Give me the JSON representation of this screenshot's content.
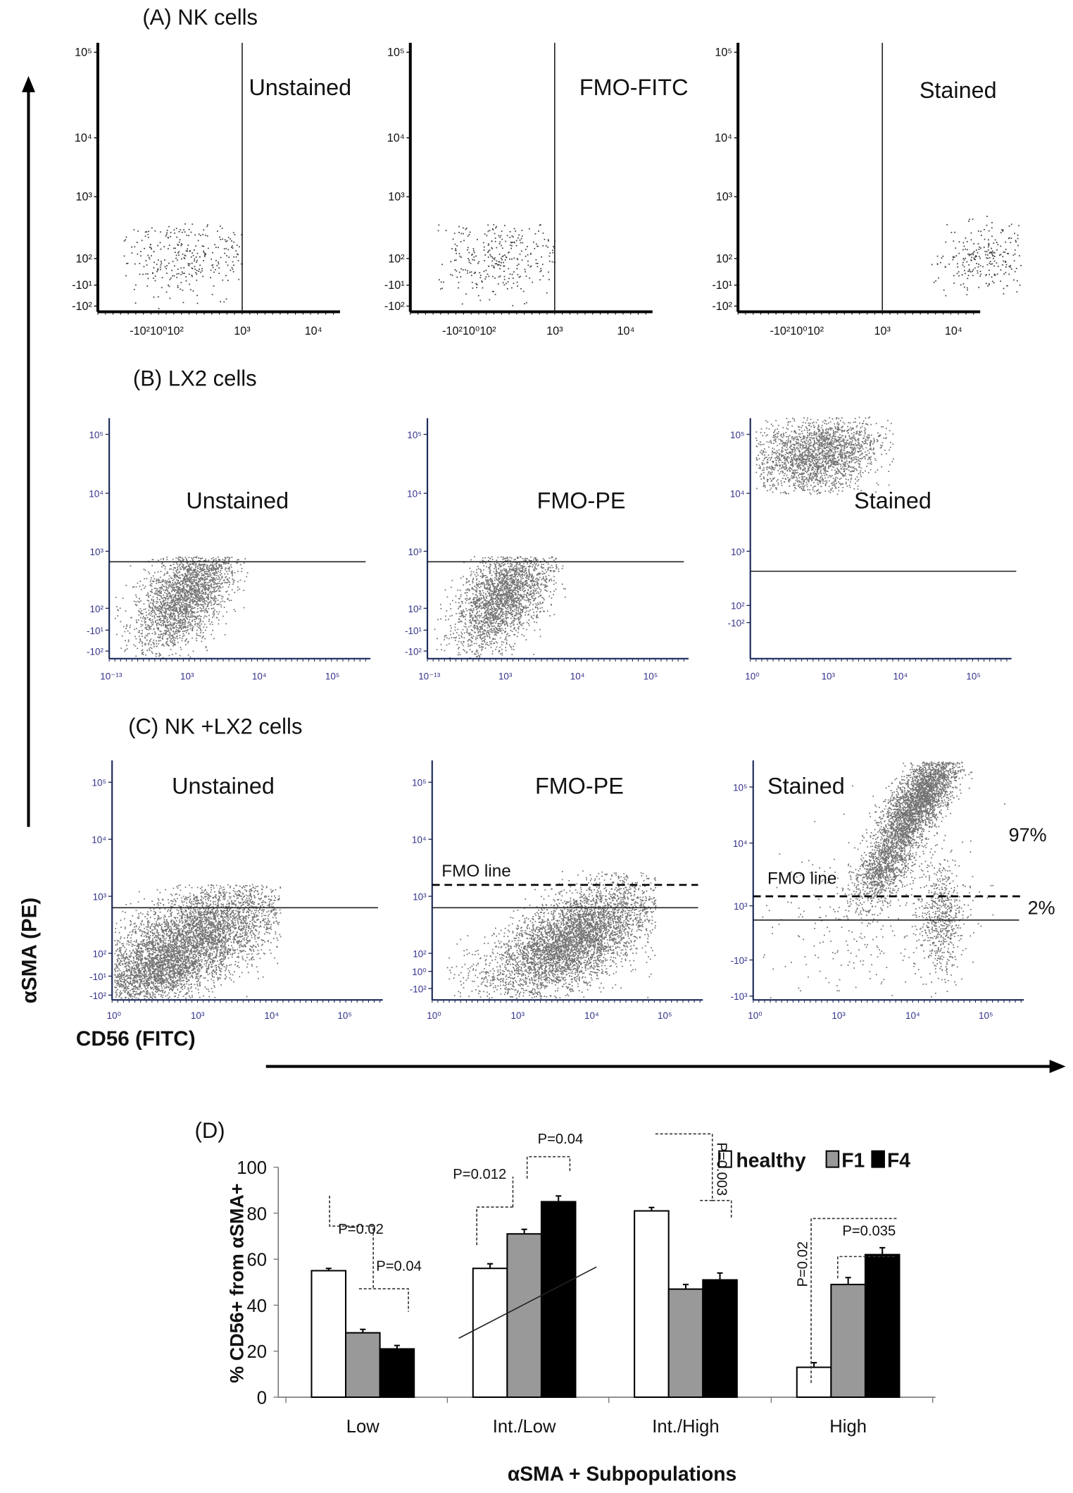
{
  "figure": {
    "y_axis_title": "αSMA (PE)",
    "x_axis_title": "CD56 (FITC)"
  },
  "panels": [
    {
      "title": "(A) NK cells",
      "plots": [
        {
          "label": "Unstained",
          "y_ticks": [
            "10⁵",
            "10⁴",
            "10³",
            "10²",
            "-10¹",
            "-10²"
          ],
          "x_ticks": [
            "-10²10⁰10²",
            "10³",
            "10⁴"
          ]
        },
        {
          "label": "FMO-FITC",
          "y_ticks": [
            "10⁵",
            "10⁴",
            "10³",
            "10²",
            "-10¹",
            "-10²"
          ],
          "x_ticks": [
            "-10²10⁰10²",
            "10³",
            "10⁴"
          ]
        },
        {
          "label": "Stained",
          "y_ticks": [
            "10⁵",
            "10⁴",
            "10³",
            "10²",
            "-10¹",
            "-10²"
          ],
          "x_ticks": [
            "-10²10⁰10²",
            "10³",
            "10⁴"
          ]
        }
      ]
    },
    {
      "title": "(B) LX2 cells",
      "plots": [
        {
          "label": "Unstained",
          "y_ticks": [
            "10⁵",
            "10⁴",
            "10³",
            "10²",
            "-10¹",
            "-10²"
          ],
          "x_ticks": [
            "10⁻¹³",
            "10³",
            "10⁴",
            "10⁵"
          ]
        },
        {
          "label": "FMO-PE",
          "y_ticks": [
            "10⁵",
            "10⁴",
            "10³",
            "10²",
            "-10¹",
            "-10²"
          ],
          "x_ticks": [
            "10⁻¹³",
            "10³",
            "10⁴",
            "10⁵"
          ]
        },
        {
          "label": "Stained",
          "y_ticks": [
            "10⁵",
            "10⁴",
            "10³",
            "10²",
            "-10²"
          ],
          "x_ticks": [
            "10⁰",
            "10³",
            "10⁴",
            "10⁵"
          ]
        }
      ]
    },
    {
      "title": "(C) NK +LX2 cells",
      "plots": [
        {
          "label": "Unstained",
          "y_ticks": [
            "10⁵",
            "10⁴",
            "10³",
            "10²",
            "-10¹",
            "-10²"
          ],
          "x_ticks": [
            "10⁰",
            "10³",
            "10⁴",
            "10⁵"
          ]
        },
        {
          "label": "FMO-PE",
          "y_ticks": [
            "10⁵",
            "10⁴",
            "10³",
            "10²",
            "10⁰",
            "-10²"
          ],
          "x_ticks": [
            "10⁰",
            "10³",
            "10⁴",
            "10⁵"
          ],
          "annotation": "FMO line"
        },
        {
          "label": "Stained",
          "y_ticks": [
            "10⁵",
            "10⁴",
            "10³",
            "-10²",
            "-10³"
          ],
          "x_ticks": [
            "10⁰",
            "10³",
            "10⁴",
            "10⁵"
          ],
          "annotation": "FMO line",
          "pct_above": "97%",
          "pct_between": "2%"
        }
      ]
    }
  ],
  "chart_data": {
    "type": "bar",
    "panel_label": "(D)",
    "title": "",
    "xlabel": "αSMA + Subpopulations",
    "ylabel": "% CD56+ from αSMA+",
    "ylim": [
      0,
      100
    ],
    "y_ticks": [
      "0",
      "20",
      "40",
      "60",
      "80",
      "100"
    ],
    "categories": [
      "Low",
      "Int./Low",
      "Int./High",
      "High"
    ],
    "legend_position": "top-right",
    "series": [
      {
        "name": "healthy",
        "color": "#ffffff",
        "values": [
          55,
          56,
          81,
          13
        ],
        "errors": [
          1,
          2,
          1.5,
          2
        ]
      },
      {
        "name": "F1",
        "color": "#999999",
        "values": [
          28,
          71,
          47,
          49
        ],
        "errors": [
          1.5,
          2,
          2,
          3
        ]
      },
      {
        "name": "F4",
        "color": "#000000",
        "values": [
          21,
          85,
          51,
          62
        ],
        "errors": [
          1.5,
          2.5,
          3,
          3
        ]
      }
    ],
    "annotations": [
      "P=0.02",
      "P=0.04",
      "P=0.012",
      "P=0.04",
      "P=0.003",
      "P=0.02",
      "P=0.035"
    ]
  }
}
